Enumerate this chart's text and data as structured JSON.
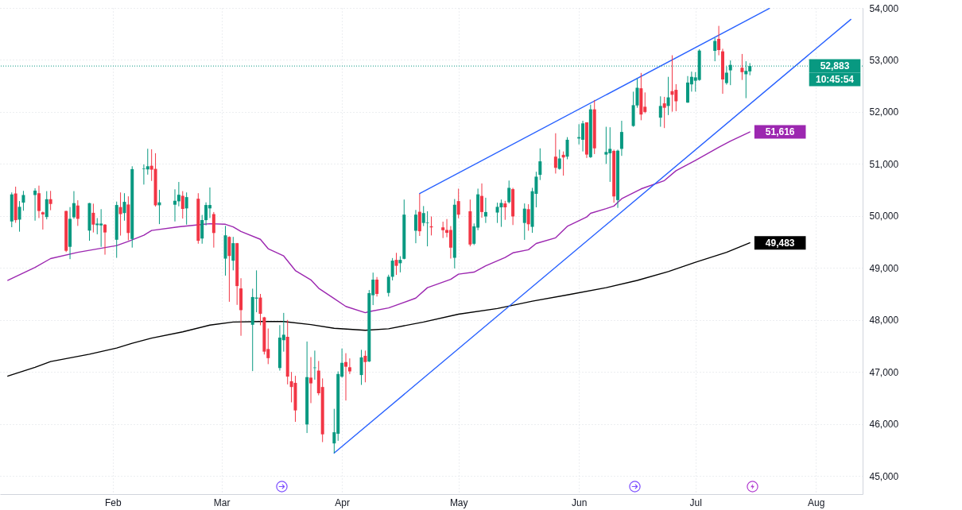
{
  "chart_data": {
    "type": "candlestick",
    "x": [
      "--01-06",
      "--01-07",
      "--01-08",
      "--01-09",
      "--01-12",
      "--01-13",
      "--01-14",
      "--01-15",
      "--01-16",
      "--01-20",
      "--01-21",
      "--01-22",
      "--01-23",
      "--01-26",
      "--01-27",
      "--01-28",
      "--01-29",
      "--01-30",
      "--02-02",
      "--02-03",
      "--02-04",
      "--02-05",
      "--02-06",
      "--02-09",
      "--02-10",
      "--02-11",
      "--02-12",
      "--02-13",
      "--02-17",
      "--02-18",
      "--02-19",
      "--02-20",
      "--02-23",
      "--02-24",
      "--02-25",
      "--02-26",
      "--02-27",
      "--03-02",
      "--03-03",
      "--03-04",
      "--03-05",
      "--03-06",
      "--03-09",
      "--03-10",
      "--03-11",
      "--03-12",
      "--03-13",
      "--03-16",
      "--03-17",
      "--03-18",
      "--03-19",
      "--03-20",
      "--03-23",
      "--03-24",
      "--03-25",
      "--03-26",
      "--03-27",
      "--03-30",
      "--03-31",
      "--04-01",
      "--04-02",
      "--04-03",
      "--04-06",
      "--04-07",
      "--04-08",
      "--04-09",
      "--04-10",
      "--04-13",
      "--04-14",
      "--04-15",
      "--04-16",
      "--04-17",
      "--04-20",
      "--04-21",
      "--04-22",
      "--04-23",
      "--04-24",
      "--04-27",
      "--04-28",
      "--04-29",
      "--04-30",
      "--05-01",
      "--05-04",
      "--05-05",
      "--05-06",
      "--05-07",
      "--05-08",
      "--05-11",
      "--05-12",
      "--05-13",
      "--05-14",
      "--05-15",
      "--05-18",
      "--05-19",
      "--05-20",
      "--05-21",
      "--05-22",
      "--05-26",
      "--05-27",
      "--05-28",
      "--05-29",
      "--06-01",
      "--06-02",
      "--06-03",
      "--06-04",
      "--06-05",
      "--06-08",
      "--06-09",
      "--06-10",
      "--06-11",
      "--06-12",
      "--06-15",
      "--06-16",
      "--06-17",
      "--06-18",
      "--06-22",
      "--06-23",
      "--06-24",
      "--06-25",
      "--06-26",
      "--06-29",
      "--06-30",
      "--07-01",
      "--07-02",
      "--07-06",
      "--07-07",
      "--07-08",
      "--07-09",
      "--07-10",
      "--07-13",
      "--07-14",
      "--07-15"
    ],
    "ohlc": [
      [
        49894,
        50452,
        49783,
        50412
      ],
      [
        50432,
        50563,
        49868,
        49919
      ],
      [
        49929,
        50286,
        49697,
        50175
      ],
      [
        50256,
        50482,
        50100,
        50402
      ],
      [
        50402,
        50532,
        49909,
        50487
      ],
      [
        50437,
        50583,
        49959,
        50095
      ],
      [
        50070,
        50085,
        49738,
        50030
      ],
      [
        49979,
        50477,
        49934,
        50321
      ],
      [
        50321,
        50482,
        50110,
        50231
      ],
      [
        50095,
        50100,
        49305,
        49330
      ],
      [
        49406,
        50170,
        49169,
        49944
      ],
      [
        49974,
        50477,
        49944,
        50246
      ],
      [
        50200,
        50301,
        49808,
        49944
      ],
      [
        49718,
        50250,
        49522,
        50246
      ],
      [
        50060,
        50236,
        49682,
        49833
      ],
      [
        49823,
        49959,
        49647,
        49853
      ],
      [
        49818,
        50130,
        49406,
        49853
      ],
      [
        49833,
        49843,
        49255,
        49682
      ],
      [
        49542,
        50276,
        49194,
        50210
      ],
      [
        50170,
        50452,
        49622,
        50035
      ],
      [
        50055,
        50437,
        49909,
        50271
      ],
      [
        50220,
        50377,
        49532,
        49672
      ],
      [
        49557,
        50955,
        49391,
        50900
      ],
      [
        50900,
        50990,
        50603,
        50910
      ],
      [
        50895,
        51292,
        50794,
        50955
      ],
      [
        50965,
        51282,
        50673,
        50890
      ],
      [
        50905,
        51206,
        50180,
        50205
      ],
      [
        50205,
        50502,
        49843,
        50261
      ],
      [
        50216,
        50512,
        49894,
        50291
      ],
      [
        50281,
        50653,
        50185,
        50407
      ],
      [
        50387,
        50477,
        49949,
        50135
      ],
      [
        50145,
        50452,
        49833,
        50362
      ],
      [
        50331,
        50437,
        49466,
        49522
      ],
      [
        49567,
        50019,
        49466,
        49919
      ],
      [
        49919,
        50261,
        49818,
        50210
      ],
      [
        50145,
        50547,
        49959,
        50210
      ],
      [
        50035,
        50075,
        49391,
        49672
      ],
      [
        49179,
        49808,
        48852,
        49627
      ],
      [
        49597,
        49607,
        48349,
        49230
      ],
      [
        49139,
        49597,
        48953,
        49476
      ],
      [
        49476,
        49481,
        48289,
        48651
      ],
      [
        48606,
        48802,
        47695,
        48188
      ],
      [
        47907,
        48601,
        47016,
        48440
      ],
      [
        48410,
        48953,
        48148,
        48430
      ],
      [
        48430,
        48500,
        47897,
        48118
      ],
      [
        48050,
        48060,
        47335,
        47390
      ],
      [
        47440,
        47835,
        47150,
        47265
      ],
      [
        47075,
        47900,
        47025,
        47660
      ],
      [
        47610,
        48135,
        47390,
        47715
      ],
      [
        47675,
        48000,
        46760,
        46910
      ],
      [
        46820,
        47000,
        46415,
        46710
      ],
      [
        46790,
        46925,
        46040,
        46260
      ],
      [
        45990,
        47585,
        45825,
        46900
      ],
      [
        46890,
        47285,
        46400,
        46780
      ],
      [
        47075,
        47410,
        46850,
        47085
      ],
      [
        47025,
        47210,
        46550,
        46590
      ],
      [
        46710,
        46875,
        45650,
        45800
      ],
      [
        45625,
        46290,
        45440,
        45840
      ],
      [
        45810,
        47010,
        45675,
        46960
      ],
      [
        46910,
        47450,
        46890,
        47175
      ],
      [
        47190,
        47360,
        46450,
        47100
      ],
      [
        47090,
        47260,
        46960,
        47010
      ],
      [
        46940,
        47425,
        46750,
        47280
      ],
      [
        47310,
        47410,
        46800,
        47190
      ],
      [
        47200,
        48575,
        47190,
        48515
      ],
      [
        48475,
        48910,
        48285,
        48775
      ],
      [
        48775,
        48825,
        48450,
        48500
      ],
      [
        48520,
        48870,
        48450,
        48830
      ],
      [
        48830,
        49190,
        48760,
        49140
      ],
      [
        49155,
        49290,
        48865,
        49040
      ],
      [
        49090,
        49225,
        48915,
        49155
      ],
      [
        49175,
        50315,
        49165,
        50025
      ],
      [
        49715,
        50115,
        49475,
        50025
      ],
      [
        50080,
        50425,
        49615,
        49705
      ],
      [
        49865,
        50190,
        49805,
        50055
      ],
      [
        49865,
        50090,
        49415,
        49875
      ],
      [
        49800,
        49990,
        49625,
        49780
      ],
      [
        49780,
        49890,
        49575,
        49725
      ],
      [
        49730,
        49940,
        49590,
        49675
      ],
      [
        49730,
        49805,
        49180,
        49390
      ],
      [
        49195,
        50325,
        48990,
        50215
      ],
      [
        50285,
        50525,
        49955,
        50025
      ],
      [
        50090,
        50315,
        49415,
        49450
      ],
      [
        49465,
        49855,
        49440,
        49800
      ],
      [
        49775,
        50525,
        49725,
        50415
      ],
      [
        50385,
        50625,
        49965,
        50075
      ],
      [
        49990,
        50350,
        49865,
        50075
      ],
      [
        50065,
        50255,
        49865,
        50175
      ],
      [
        50165,
        50315,
        49790,
        50250
      ],
      [
        50240,
        50290,
        49925,
        50165
      ],
      [
        50265,
        50680,
        50240,
        50540
      ],
      [
        50515,
        50540,
        49825,
        49990
      ],
      [
        49865,
        50240,
        49540,
        50140
      ],
      [
        50130,
        50225,
        49715,
        49840
      ],
      [
        49790,
        50540,
        49675,
        50475
      ],
      [
        50425,
        50850,
        50165,
        50755
      ],
      [
        50790,
        51300,
        50690,
        51050
      ],
      [
        51140,
        51590,
        50815,
        50925
      ],
      [
        50905,
        51275,
        50890,
        51105
      ],
      [
        51175,
        51240,
        50775,
        51125
      ],
      [
        51140,
        51515,
        51090,
        51465
      ],
      [
        51490,
        51765,
        51375,
        51515
      ],
      [
        51465,
        51830,
        51240,
        51780
      ],
      [
        51800,
        51800,
        51115,
        51180
      ],
      [
        51130,
        52140,
        51115,
        52050
      ],
      [
        52050,
        52230,
        51190,
        51300
      ],
      [
        51180,
        51715,
        51000,
        51230
      ],
      [
        51205,
        51705,
        50655,
        51290
      ],
      [
        51250,
        51275,
        50255,
        50375
      ],
      [
        50305,
        51275,
        50155,
        51255
      ],
      [
        51290,
        51830,
        51155,
        51615
      ],
      [
        51730,
        52390,
        51715,
        52130
      ],
      [
        52125,
        52640,
        52080,
        52465
      ],
      [
        52455,
        52750,
        51840,
        51950
      ],
      [
        52100,
        52375,
        51975,
        52000
      ],
      [
        51890,
        52300,
        51715,
        52115
      ],
      [
        52165,
        52290,
        51690,
        52080
      ],
      [
        52115,
        52675,
        51940,
        52280
      ],
      [
        52400,
        53090,
        52005,
        52330
      ],
      [
        52425,
        52535,
        52015,
        52205
      ],
      [
        52180,
        52690,
        52175,
        52565
      ],
      [
        52530,
        52775,
        52390,
        52675
      ],
      [
        52600,
        52765,
        52390,
        52665
      ],
      [
        52615,
        53205,
        52600,
        53180
      ],
      [
        53175,
        53425,
        52975,
        53365
      ],
      [
        53405,
        53655,
        53090,
        53190
      ],
      [
        53165,
        53215,
        52350,
        52625
      ],
      [
        52555,
        52875,
        52525,
        52755
      ],
      [
        52800,
        52990,
        52515,
        52905
      ],
      [
        52850,
        53115,
        52615,
        52765
      ],
      [
        52725,
        52975,
        52265,
        52790
      ],
      [
        52780,
        52940,
        52705,
        52883
      ]
    ],
    "colors": [
      "#089981",
      "#f23645",
      "#089981",
      "#089981",
      "#089981",
      "#f23645",
      "#f23645",
      "#089981",
      "#f23645",
      "#f23645",
      "#089981",
      "#089981",
      "#f23645",
      "#089981",
      "#f23645",
      "#089981",
      "#089981",
      "#f23645",
      "#089981",
      "#f23645",
      "#089981",
      "#f23645",
      "#089981",
      "#089981",
      "#089981",
      "#f23645",
      "#f23645",
      "#089981",
      "#089981",
      "#089981",
      "#f23645",
      "#089981",
      "#f23645",
      "#089981",
      "#089981",
      "#089981",
      "#f23645",
      "#089981",
      "#f23645",
      "#089981",
      "#f23645",
      "#f23645",
      "#089981",
      "#089981",
      "#f23645",
      "#f23645",
      "#f23645",
      "#089981",
      "#089981",
      "#f23645",
      "#f23645",
      "#f23645",
      "#089981",
      "#f23645",
      "#089981",
      "#f23645",
      "#f23645",
      "#089981",
      "#089981",
      "#089981",
      "#f23645",
      "#f23645",
      "#089981",
      "#f23645",
      "#089981",
      "#089981",
      "#f23645",
      "#089981",
      "#089981",
      "#f23645",
      "#089981",
      "#089981",
      "#089981",
      "#f23645",
      "#089981",
      "#089981",
      "#f23645",
      "#f23645",
      "#f23645",
      "#f23645",
      "#089981",
      "#f23645",
      "#f23645",
      "#089981",
      "#089981",
      "#f23645",
      "#089981",
      "#089981",
      "#089981",
      "#f23645",
      "#089981",
      "#f23645",
      "#089981",
      "#f23645",
      "#089981",
      "#089981",
      "#089981",
      "#f23645",
      "#089981",
      "#f23645",
      "#089981",
      "#089981",
      "#089981",
      "#f23645",
      "#089981",
      "#f23645",
      "#089981",
      "#089981",
      "#f23645",
      "#089981",
      "#089981",
      "#089981",
      "#089981",
      "#f23645",
      "#f23645",
      "#089981",
      "#f23645",
      "#089981",
      "#f23645",
      "#f23645",
      "#089981",
      "#089981",
      "#089981",
      "#089981",
      "#089981",
      "#f23645",
      "#f23645",
      "#089981",
      "#089981",
      "#f23645",
      "#089981",
      "#089981"
    ],
    "series": [
      {
        "type": "line",
        "color": "#9c27b0",
        "x": [
          "--01-05",
          "--01-12",
          "--01-16",
          "--01-23",
          "--02-02",
          "--02-05",
          "--02-09",
          "--02-11",
          "--02-18",
          "--02-23",
          "--02-26",
          "--03-02",
          "--03-04",
          "--03-06",
          "--03-11",
          "--03-13",
          "--03-17",
          "--03-20",
          "--03-24",
          "--03-26",
          "--03-30",
          "--04-02",
          "--04-07",
          "--04-08",
          "--04-13",
          "--04-20",
          "--04-23",
          "--04-29",
          "--05-01",
          "--05-05",
          "--05-08",
          "--05-13",
          "--05-15",
          "--05-19",
          "--05-21",
          "--05-26",
          "--05-29",
          "--06-03",
          "--06-04",
          "--06-08",
          "--06-10",
          "--06-12",
          "--06-17",
          "--06-23",
          "--06-26",
          "--07-01",
          "--07-07",
          "--07-10",
          "--07-15"
        ],
        "values": [
          48760,
          49010,
          49180,
          49300,
          49430,
          49510,
          49630,
          49720,
          49790,
          49830,
          49850,
          49840,
          49790,
          49700,
          49550,
          49370,
          49230,
          48950,
          48770,
          48610,
          48410,
          48260,
          48140,
          48160,
          48230,
          48420,
          48620,
          48780,
          48880,
          48920,
          49040,
          49200,
          49290,
          49350,
          49470,
          49580,
          49800,
          49980,
          50050,
          50140,
          50190,
          50330,
          50520,
          50680,
          50870,
          51070,
          51320,
          51440,
          51616
        ],
        "value_labels": [
          null,
          null,
          null,
          null,
          null,
          null,
          null,
          null,
          null,
          null,
          null,
          null,
          null,
          null,
          null,
          null,
          null,
          null,
          null,
          null,
          null,
          null,
          null,
          null,
          null,
          null,
          null,
          null,
          null,
          null,
          null,
          null,
          null,
          null,
          null,
          null,
          null,
          null,
          null,
          null,
          null,
          null,
          null,
          null,
          null,
          null,
          null,
          null,
          "51,616"
        ]
      },
      {
        "type": "line",
        "color": "#000000",
        "x": [
          "--01-05",
          "--01-12",
          "--01-16",
          "--01-26",
          "--02-02",
          "--02-06",
          "--02-11",
          "--02-19",
          "--02-26",
          "--03-04",
          "--03-11",
          "--03-17",
          "--03-24",
          "--03-30",
          "--04-07",
          "--04-13",
          "--04-22",
          "--05-01",
          "--05-11",
          "--05-20",
          "--05-29",
          "--06-08",
          "--06-16",
          "--06-24",
          "--07-01",
          "--07-09",
          "--07-15"
        ],
        "values": [
          46920,
          47090,
          47200,
          47340,
          47460,
          47550,
          47650,
          47770,
          47900,
          47960,
          47970,
          47970,
          47910,
          47840,
          47800,
          47830,
          47960,
          48110,
          48220,
          48360,
          48480,
          48620,
          48760,
          48930,
          49110,
          49300,
          49483
        ],
        "value_labels": [
          null,
          null,
          null,
          null,
          null,
          null,
          null,
          null,
          null,
          null,
          null,
          null,
          null,
          null,
          null,
          null,
          null,
          null,
          null,
          null,
          null,
          null,
          null,
          null,
          null,
          null,
          "49,483"
        ]
      },
      {
        "type": "line",
        "color": "#2962ff",
        "x": [
          "--04-21",
          "--07-20"
        ],
        "values": [
          50430,
          53990
        ]
      },
      {
        "type": "line",
        "color": "#2962ff",
        "x": [
          "--03-30",
          "--08-10"
        ],
        "values": [
          45440,
          53780
        ]
      }
    ],
    "ref_lines": [
      {
        "axis": "y",
        "value": 52883,
        "label": "52,883",
        "color": "#089981",
        "line_style": "dotted"
      }
    ],
    "annotations": [
      "10:45:54"
    ],
    "xlim": [
      "--01-04",
      "--08-12"
    ],
    "xticks": [
      {
        "value": "--02-01",
        "label": "Feb"
      },
      {
        "value": "--03-01",
        "label": "Mar"
      },
      {
        "value": "--04-01",
        "label": "Apr"
      },
      {
        "value": "--05-01",
        "label": "May"
      },
      {
        "value": "--06-01",
        "label": "Jun"
      },
      {
        "value": "--07-01",
        "label": "Jul"
      },
      {
        "value": "--08-01",
        "label": "Aug"
      }
    ],
    "ylim": [
      44650,
      54000
    ],
    "yticks": [
      {
        "value": 45000,
        "label": "45,000"
      },
      {
        "value": 46000,
        "label": "46,000"
      },
      {
        "value": 47000,
        "label": "47,000"
      },
      {
        "value": 48000,
        "label": "48,000"
      },
      {
        "value": 49000,
        "label": "49,000"
      },
      {
        "value": 50000,
        "label": "50,000"
      },
      {
        "value": 51000,
        "label": "51,000"
      },
      {
        "value": 52000,
        "label": "52,000"
      },
      {
        "value": 53000,
        "label": "53,000"
      },
      {
        "value": 54000,
        "label": "54,000"
      }
    ],
    "grid": true
  }
}
